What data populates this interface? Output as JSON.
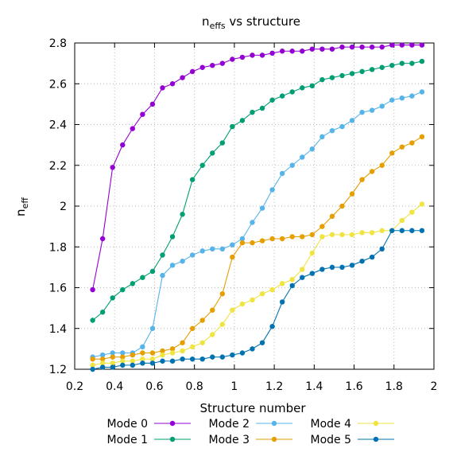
{
  "chart_data": {
    "type": "line",
    "title": {
      "main": "n",
      "sub": "effs",
      "rest": " vs structure"
    },
    "xlabel": "Structure number",
    "ylabel": {
      "main": "n",
      "sub": "eff"
    },
    "xlim": [
      0.2,
      2
    ],
    "ylim": [
      1.2,
      2.8
    ],
    "xticks": [
      "0.2",
      "0.4",
      "0.6",
      "0.8",
      "1",
      "1.2",
      "1.4",
      "1.6",
      "1.8",
      "2"
    ],
    "yticks": [
      "1.2",
      "1.4",
      "1.6",
      "1.8",
      "2",
      "2.2",
      "2.4",
      "2.6",
      "2.8"
    ],
    "grid": true,
    "legend_position": "bottom",
    "x": [
      0.29,
      0.34,
      0.39,
      0.44,
      0.49,
      0.54,
      0.59,
      0.64,
      0.69,
      0.74,
      0.79,
      0.84,
      0.89,
      0.94,
      0.99,
      1.04,
      1.09,
      1.14,
      1.19,
      1.24,
      1.29,
      1.34,
      1.39,
      1.44,
      1.49,
      1.54,
      1.59,
      1.64,
      1.69,
      1.74,
      1.79,
      1.84,
      1.89,
      1.94
    ],
    "series": [
      {
        "name": "Mode 0",
        "color": "#9400d3",
        "values": [
          1.59,
          1.84,
          2.19,
          2.3,
          2.38,
          2.45,
          2.5,
          2.58,
          2.6,
          2.63,
          2.66,
          2.68,
          2.69,
          2.7,
          2.72,
          2.73,
          2.74,
          2.74,
          2.75,
          2.76,
          2.76,
          2.76,
          2.77,
          2.77,
          2.77,
          2.78,
          2.78,
          2.78,
          2.78,
          2.78,
          2.79,
          2.79,
          2.79,
          2.79
        ]
      },
      {
        "name": "Mode 1",
        "color": "#009e73",
        "values": [
          1.44,
          1.48,
          1.55,
          1.59,
          1.62,
          1.65,
          1.68,
          1.76,
          1.85,
          1.96,
          2.13,
          2.2,
          2.26,
          2.31,
          2.39,
          2.42,
          2.46,
          2.48,
          2.52,
          2.54,
          2.56,
          2.58,
          2.59,
          2.62,
          2.63,
          2.64,
          2.65,
          2.66,
          2.67,
          2.68,
          2.69,
          2.7,
          2.7,
          2.71
        ]
      },
      {
        "name": "Mode 2",
        "color": "#56b4e9",
        "values": [
          1.26,
          1.27,
          1.28,
          1.28,
          1.28,
          1.31,
          1.4,
          1.66,
          1.71,
          1.73,
          1.76,
          1.78,
          1.79,
          1.79,
          1.81,
          1.84,
          1.92,
          1.99,
          2.08,
          2.16,
          2.2,
          2.24,
          2.28,
          2.34,
          2.37,
          2.39,
          2.42,
          2.46,
          2.47,
          2.49,
          2.52,
          2.53,
          2.54,
          2.56
        ]
      },
      {
        "name": "Mode 3",
        "color": "#e69f00",
        "values": [
          1.25,
          1.25,
          1.26,
          1.26,
          1.27,
          1.28,
          1.28,
          1.29,
          1.3,
          1.33,
          1.4,
          1.44,
          1.49,
          1.57,
          1.75,
          1.82,
          1.82,
          1.83,
          1.84,
          1.84,
          1.85,
          1.85,
          1.86,
          1.9,
          1.95,
          2.0,
          2.06,
          2.13,
          2.17,
          2.2,
          2.26,
          2.29,
          2.31,
          2.34
        ]
      },
      {
        "name": "Mode 4",
        "color": "#f0e442",
        "values": [
          1.22,
          1.23,
          1.23,
          1.24,
          1.24,
          1.25,
          1.25,
          1.27,
          1.28,
          1.29,
          1.31,
          1.33,
          1.37,
          1.42,
          1.49,
          1.52,
          1.54,
          1.57,
          1.59,
          1.62,
          1.64,
          1.69,
          1.77,
          1.85,
          1.86,
          1.86,
          1.86,
          1.87,
          1.87,
          1.88,
          1.88,
          1.93,
          1.97,
          2.01
        ]
      },
      {
        "name": "Mode 5",
        "color": "#0072b2",
        "values": [
          1.2,
          1.21,
          1.21,
          1.22,
          1.22,
          1.23,
          1.23,
          1.24,
          1.24,
          1.25,
          1.25,
          1.25,
          1.26,
          1.26,
          1.27,
          1.28,
          1.3,
          1.33,
          1.41,
          1.53,
          1.61,
          1.65,
          1.67,
          1.69,
          1.7,
          1.7,
          1.71,
          1.73,
          1.75,
          1.79,
          1.88,
          1.88,
          1.88,
          1.88
        ]
      }
    ]
  }
}
